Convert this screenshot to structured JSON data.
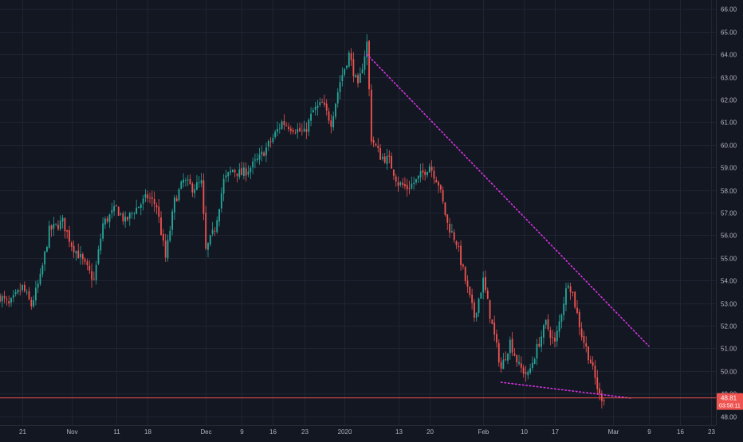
{
  "chart_data": {
    "type": "candlestick",
    "title": "",
    "xlabel": "",
    "ylabel": "",
    "ylim": [
      47.6,
      66.4
    ],
    "y_ticks": [
      "48.00",
      "49.00",
      "50.00",
      "51.00",
      "52.00",
      "53.00",
      "54.00",
      "55.00",
      "56.00",
      "57.00",
      "58.00",
      "59.00",
      "60.00",
      "61.00",
      "62.00",
      "63.00",
      "64.00",
      "65.00",
      "66.00"
    ],
    "x_ticks": [
      {
        "label": "21",
        "date": "2019-10-21"
      },
      {
        "label": "Nov",
        "date": "2019-11-01"
      },
      {
        "label": "11",
        "date": "2019-11-11"
      },
      {
        "label": "18",
        "date": "2019-11-18"
      },
      {
        "label": "Dec",
        "date": "2019-12-01"
      },
      {
        "label": "9",
        "date": "2019-12-09"
      },
      {
        "label": "16",
        "date": "2019-12-16"
      },
      {
        "label": "23",
        "date": "2019-12-23"
      },
      {
        "label": "2020",
        "date": "2020-01-01"
      },
      {
        "label": "13",
        "date": "2020-01-13"
      },
      {
        "label": "20",
        "date": "2020-01-20"
      },
      {
        "label": "Feb",
        "date": "2020-02-01"
      },
      {
        "label": "10",
        "date": "2020-02-10"
      },
      {
        "label": "17",
        "date": "2020-02-17"
      },
      {
        "label": "Mar",
        "date": "2020-03-01"
      },
      {
        "label": "9",
        "date": "2020-03-09"
      },
      {
        "label": "16",
        "date": "2020-03-16"
      },
      {
        "label": "23",
        "date": "2020-03-23"
      }
    ],
    "x_range": [
      "2019-10-16",
      "2020-03-24"
    ],
    "price_path": [
      [
        "2019-10-16",
        53.3
      ],
      [
        "2019-10-18",
        52.9
      ],
      [
        "2019-10-21",
        53.7
      ],
      [
        "2019-10-23",
        52.9
      ],
      [
        "2019-10-25",
        54.1
      ],
      [
        "2019-10-27",
        56.2
      ],
      [
        "2019-10-30",
        56.6
      ],
      [
        "2019-11-01",
        55.6
      ],
      [
        "2019-11-03",
        55.0
      ],
      [
        "2019-11-06",
        54.0
      ],
      [
        "2019-11-08",
        56.5
      ],
      [
        "2019-11-11",
        57.2
      ],
      [
        "2019-11-13",
        56.6
      ],
      [
        "2019-11-15",
        57.1
      ],
      [
        "2019-11-18",
        57.7
      ],
      [
        "2019-11-20",
        57.3
      ],
      [
        "2019-11-22",
        55.0
      ],
      [
        "2019-11-24",
        57.5
      ],
      [
        "2019-11-26",
        58.4
      ],
      [
        "2019-11-28",
        58.1
      ],
      [
        "2019-11-30",
        58.3
      ],
      [
        "2019-12-01",
        55.3
      ],
      [
        "2019-12-03",
        56.3
      ],
      [
        "2019-12-05",
        58.4
      ],
      [
        "2019-12-07",
        58.9
      ],
      [
        "2019-12-09",
        58.7
      ],
      [
        "2019-12-11",
        59.0
      ],
      [
        "2019-12-13",
        59.4
      ],
      [
        "2019-12-16",
        60.3
      ],
      [
        "2019-12-18",
        61.0
      ],
      [
        "2019-12-20",
        60.8
      ],
      [
        "2019-12-23",
        60.5
      ],
      [
        "2019-12-25",
        61.5
      ],
      [
        "2019-12-27",
        61.8
      ],
      [
        "2019-12-29",
        61.0
      ],
      [
        "2019-12-31",
        62.8
      ],
      [
        "2020-01-02",
        64.0
      ],
      [
        "2020-01-04",
        62.5
      ],
      [
        "2020-01-06",
        64.5
      ],
      [
        "2020-01-07",
        60.3
      ],
      [
        "2020-01-09",
        59.5
      ],
      [
        "2020-01-11",
        59.3
      ],
      [
        "2020-01-13",
        58.3
      ],
      [
        "2020-01-15",
        58.1
      ],
      [
        "2020-01-17",
        58.4
      ],
      [
        "2020-01-20",
        59.1
      ],
      [
        "2020-01-22",
        58.3
      ],
      [
        "2020-01-24",
        56.5
      ],
      [
        "2020-01-26",
        55.7
      ],
      [
        "2020-01-28",
        54.0
      ],
      [
        "2020-01-30",
        52.4
      ],
      [
        "2020-02-01",
        54.0
      ],
      [
        "2020-02-03",
        52.0
      ],
      [
        "2020-02-05",
        50.1
      ],
      [
        "2020-02-07",
        51.3
      ],
      [
        "2020-02-09",
        50.2
      ],
      [
        "2020-02-11",
        49.8
      ],
      [
        "2020-02-13",
        51.0
      ],
      [
        "2020-02-15",
        52.1
      ],
      [
        "2020-02-17",
        51.2
      ],
      [
        "2020-02-19",
        53.1
      ],
      [
        "2020-02-20",
        54.0
      ],
      [
        "2020-02-21",
        53.4
      ],
      [
        "2020-02-23",
        51.6
      ],
      [
        "2020-02-25",
        50.4
      ],
      [
        "2020-02-27",
        48.9
      ],
      [
        "2020-02-28",
        48.81
      ]
    ],
    "trendlines": [
      {
        "style": "dotted",
        "color": "#d633e0",
        "from": [
          "2020-01-06",
          64.0
        ],
        "to": [
          "2020-03-09",
          51.1
        ]
      },
      {
        "style": "dotted",
        "color": "#d633e0",
        "from": [
          "2020-02-05",
          49.5
        ],
        "to": [
          "2020-03-05",
          48.8
        ]
      }
    ],
    "horizontal_line": {
      "value": 48.81,
      "color": "#ef5350"
    },
    "last_price_label": "48.81",
    "countdown_label": "03:58:11",
    "up_color": "#26a69a",
    "down_color": "#ef5350",
    "grid": true,
    "background": "#131722"
  }
}
